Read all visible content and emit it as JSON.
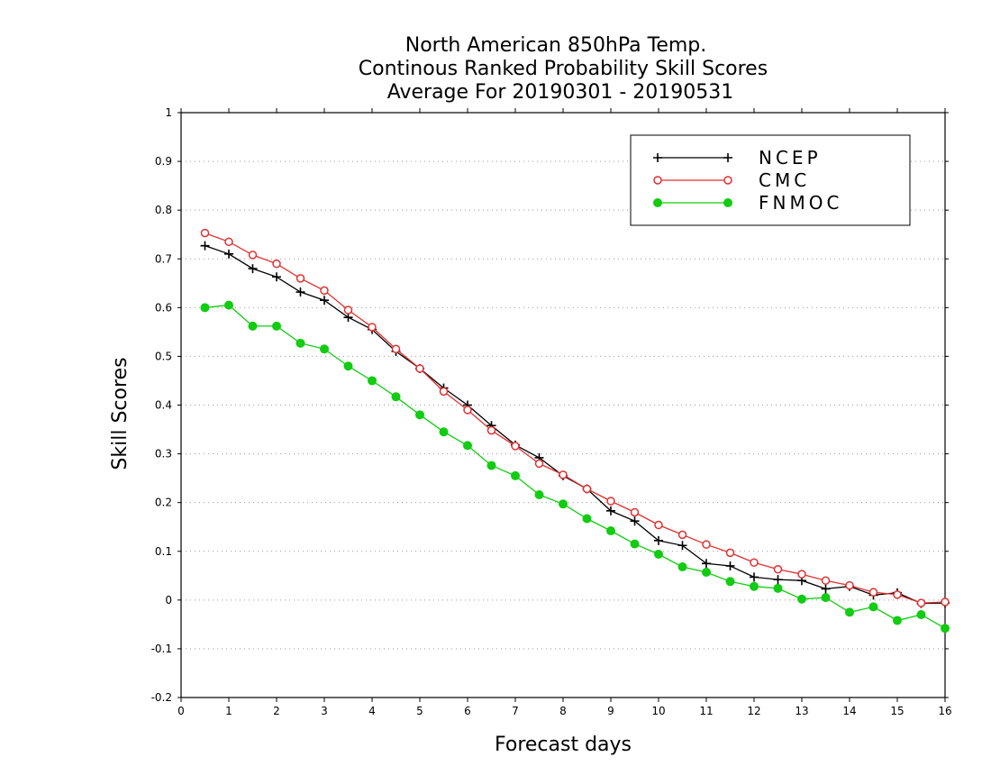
{
  "chart_data": {
    "type": "line",
    "title_lines": [
      "North American 850hPa Temp.",
      "Continous Ranked Probability Skill Scores",
      "Average For 20190301 - 20190531"
    ],
    "xlabel": "Forecast days",
    "ylabel": "Skill Scores",
    "xlim": [
      0,
      16
    ],
    "ylim": [
      -0.2,
      1
    ],
    "x_ticks": [
      "0",
      "1",
      "2",
      "3",
      "4",
      "5",
      "6",
      "7",
      "8",
      "9",
      "10",
      "11",
      "12",
      "13",
      "14",
      "15",
      "16"
    ],
    "y_ticks": [
      "-0.2",
      "-0.1",
      "0",
      "0.1",
      "0.2",
      "0.3",
      "0.4",
      "0.5",
      "0.6",
      "0.7",
      "0.8",
      "0.9",
      "1"
    ],
    "grid": "horizontal dotted",
    "legend_position": "top-right",
    "x": [
      0.5,
      1,
      1.5,
      2,
      2.5,
      3,
      3.5,
      4,
      4.5,
      5,
      5.5,
      6,
      6.5,
      7,
      7.5,
      8,
      8.5,
      9,
      9.5,
      10,
      10.5,
      11,
      11.5,
      12,
      12.5,
      13,
      13.5,
      14,
      14.5,
      15,
      15.5,
      16
    ],
    "series": [
      {
        "name": "NCEP",
        "color": "#000000",
        "marker": "plus",
        "values": [
          0.727,
          0.71,
          0.68,
          0.663,
          0.632,
          0.615,
          0.58,
          0.555,
          0.51,
          0.475,
          0.435,
          0.4,
          0.358,
          0.318,
          0.292,
          0.255,
          0.228,
          0.183,
          0.162,
          0.122,
          0.112,
          0.075,
          0.07,
          0.047,
          0.042,
          0.04,
          0.023,
          0.028,
          0.01,
          0.015,
          -0.007,
          -0.006
        ]
      },
      {
        "name": "CMC",
        "color": "#e03030",
        "marker": "open-circle",
        "values": [
          0.753,
          0.735,
          0.708,
          0.69,
          0.66,
          0.635,
          0.595,
          0.56,
          0.515,
          0.475,
          0.428,
          0.39,
          0.348,
          0.316,
          0.28,
          0.257,
          0.228,
          0.203,
          0.18,
          0.154,
          0.134,
          0.114,
          0.097,
          0.077,
          0.063,
          0.053,
          0.04,
          0.03,
          0.016,
          0.011,
          -0.006,
          -0.004
        ]
      },
      {
        "name": "FNMOC",
        "color": "#11cc11",
        "marker": "filled-circle",
        "values": [
          0.6,
          0.605,
          0.562,
          0.562,
          0.527,
          0.515,
          0.48,
          0.45,
          0.417,
          0.38,
          0.345,
          0.317,
          0.276,
          0.255,
          0.216,
          0.197,
          0.167,
          0.142,
          0.115,
          0.094,
          0.068,
          0.057,
          0.038,
          0.028,
          0.024,
          0.002,
          0.005,
          -0.025,
          -0.014,
          -0.042,
          -0.03,
          -0.058
        ]
      }
    ]
  }
}
